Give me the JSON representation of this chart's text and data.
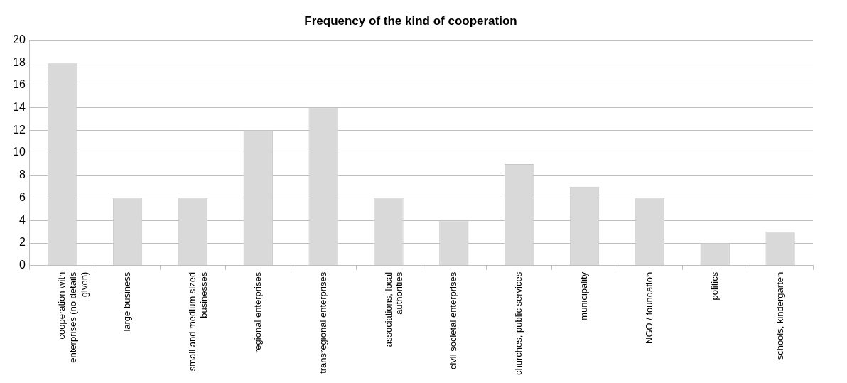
{
  "chart_data": {
    "type": "bar",
    "title": "Frequency of the kind of cooperation",
    "categories": [
      "cooperation with enterprises (no details given)",
      "large business",
      "small and medium sized businesses",
      "regional enterprises",
      "transregional enterprises",
      "associations, local authorities",
      "civil societal enterprises",
      "churches, public services",
      "municipality",
      "NGO / foundation",
      "politics",
      "schools, kindergarten"
    ],
    "values": [
      18,
      6,
      6,
      12,
      14,
      6,
      4,
      9,
      7,
      6,
      2,
      3
    ],
    "color": "#d9d9d9",
    "ylim": [
      0,
      20
    ],
    "yticks": [
      0,
      2,
      4,
      6,
      8,
      10,
      12,
      14,
      16,
      18,
      20
    ],
    "grid": "y",
    "legend": false
  }
}
